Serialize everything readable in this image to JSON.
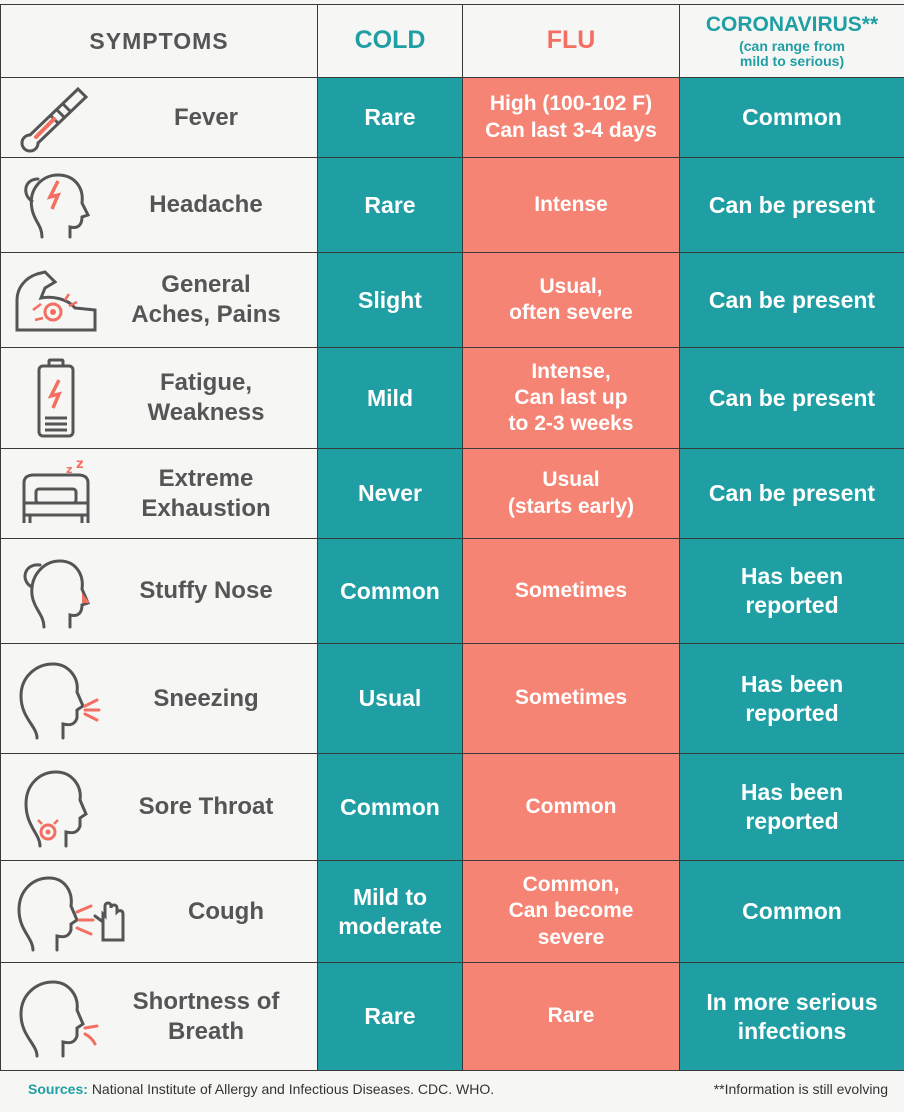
{
  "header": {
    "symptoms": "SYMPTOMS",
    "cold": "COLD",
    "flu": "FLU",
    "coronavirus": "CORONAVIRUS**",
    "coronavirus_note": "(can range from\nmild to serious)"
  },
  "rows": [
    {
      "symptom": "Fever",
      "icon": "thermometer-icon",
      "cold": "Rare",
      "flu": "High (100-102 F)\nCan last 3-4 days",
      "coronavirus": "Common"
    },
    {
      "symptom": "Headache",
      "icon": "headache-icon",
      "cold": "Rare",
      "flu": "Intense",
      "coronavirus": "Can be present"
    },
    {
      "symptom": "General\nAches, Pains",
      "icon": "muscle-ache-icon",
      "cold": "Slight",
      "flu": "Usual,\noften severe",
      "coronavirus": "Can be present"
    },
    {
      "symptom": "Fatigue,\nWeakness",
      "icon": "low-battery-icon",
      "cold": "Mild",
      "flu": "Intense,\nCan last up\nto 2-3 weeks",
      "coronavirus": "Can be present"
    },
    {
      "symptom": "Extreme\nExhaustion",
      "icon": "bed-sleep-icon",
      "cold": "Never",
      "flu": "Usual\n(starts early)",
      "coronavirus": "Can be present"
    },
    {
      "symptom": "Stuffy Nose",
      "icon": "stuffy-nose-icon",
      "cold": "Common",
      "flu": "Sometimes",
      "coronavirus": "Has been\nreported"
    },
    {
      "symptom": "Sneezing",
      "icon": "sneezing-head-icon",
      "cold": "Usual",
      "flu": "Sometimes",
      "coronavirus": "Has been\nreported"
    },
    {
      "symptom": "Sore Throat",
      "icon": "sore-throat-icon",
      "cold": "Common",
      "flu": "Common",
      "coronavirus": "Has been\nreported"
    },
    {
      "symptom": "Cough",
      "icon": "cough-icon",
      "cold": "Mild to\nmoderate",
      "flu": "Common,\nCan become\nsevere",
      "coronavirus": "Common"
    },
    {
      "symptom": "Shortness of\nBreath",
      "icon": "breath-head-icon",
      "cold": "Rare",
      "flu": "Rare",
      "coronavirus": "In more serious\ninfections"
    }
  ],
  "footer": {
    "sources_label": "Sources:",
    "sources_text": "National Institute of Allergy and Infectious Diseases. CDC. WHO.",
    "note": "**Information is still evolving"
  },
  "colors": {
    "teal": "#1f9fa4",
    "coral": "#f58474",
    "gray_text": "#555555",
    "background": "#f6f6f4"
  }
}
